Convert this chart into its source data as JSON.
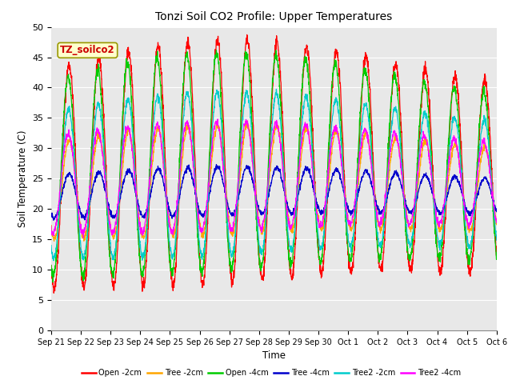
{
  "title": "Tonzi Soil CO2 Profile: Upper Temperatures",
  "ylabel": "Soil Temperature (C)",
  "xlabel": "Time",
  "box_label": "TZ_soilco2",
  "ylim": [
    0,
    50
  ],
  "yticks": [
    0,
    5,
    10,
    15,
    20,
    25,
    30,
    35,
    40,
    45,
    50
  ],
  "background_color": "#e8e8e8",
  "series": [
    {
      "label": "Open -2cm",
      "color": "#ff0000"
    },
    {
      "label": "Tree -2cm",
      "color": "#ffa500"
    },
    {
      "label": "Open -4cm",
      "color": "#00cc00"
    },
    {
      "label": "Tree -4cm",
      "color": "#0000cc"
    },
    {
      "label": "Tree2 -2cm",
      "color": "#00cccc"
    },
    {
      "label": "Tree2 -4cm",
      "color": "#ff00ff"
    }
  ],
  "n_days": 15,
  "points_per_day": 144,
  "x_tick_labels": [
    "Sep 21",
    "Sep 22",
    "Sep 23",
    "Sep 24",
    "Sep 25",
    "Sep 26",
    "Sep 27",
    "Sep 28",
    "Sep 29",
    "Sep 30",
    "Oct 1",
    "Oct 2",
    "Oct 3",
    "Oct 4",
    "Oct 5",
    "Oct 6"
  ],
  "x_tick_positions": [
    0,
    1,
    2,
    3,
    4,
    5,
    6,
    7,
    8,
    9,
    10,
    11,
    12,
    13,
    14,
    15
  ]
}
